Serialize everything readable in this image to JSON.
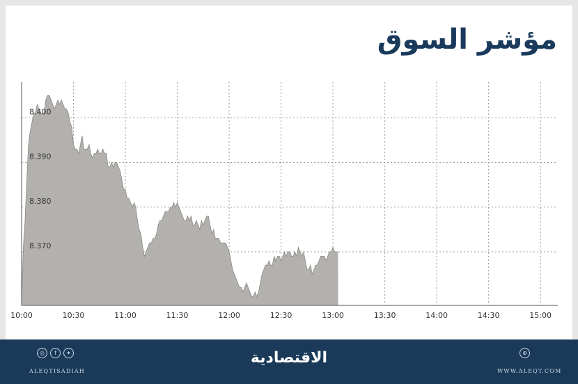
{
  "title": "مؤشر السوق",
  "chart_data": {
    "type": "area",
    "title": "مؤشر السوق",
    "xlabel": "",
    "ylabel": "",
    "y_ticks": [
      "8.370",
      "8.380",
      "8.390",
      "8.400"
    ],
    "y_tick_values": [
      8.37,
      8.38,
      8.39,
      8.4
    ],
    "x_ticks": [
      "10:00",
      "10:30",
      "11:00",
      "11:30",
      "12:00",
      "12:30",
      "13:00",
      "13:30",
      "14:00",
      "14:30",
      "15:00"
    ],
    "ylim": [
      8.358,
      8.408
    ],
    "grid": true,
    "colors": {
      "fill": "#b3b1ae",
      "line": "#8a8784",
      "grid": "#9a9a9a"
    },
    "points": [
      [
        "10:00",
        8.359
      ],
      [
        "10:01",
        8.371
      ],
      [
        "10:02",
        8.377
      ],
      [
        "10:03",
        8.386
      ],
      [
        "10:04",
        8.394
      ],
      [
        "10:05",
        8.397
      ],
      [
        "10:06",
        8.399
      ],
      [
        "10:07",
        8.401
      ],
      [
        "10:08",
        8.401
      ],
      [
        "10:09",
        8.403
      ],
      [
        "10:10",
        8.402
      ],
      [
        "10:11",
        8.401
      ],
      [
        "10:12",
        8.401
      ],
      [
        "10:13",
        8.401
      ],
      [
        "10:14",
        8.404
      ],
      [
        "10:15",
        8.405
      ],
      [
        "10:16",
        8.405
      ],
      [
        "10:17",
        8.404
      ],
      [
        "10:18",
        8.403
      ],
      [
        "10:19",
        8.402
      ],
      [
        "10:20",
        8.403
      ],
      [
        "10:21",
        8.404
      ],
      [
        "10:22",
        8.403
      ],
      [
        "10:23",
        8.404
      ],
      [
        "10:24",
        8.403
      ],
      [
        "10:25",
        8.402
      ],
      [
        "10:26",
        8.402
      ],
      [
        "10:27",
        8.401
      ],
      [
        "10:28",
        8.399
      ],
      [
        "10:29",
        8.398
      ],
      [
        "10:30",
        8.394
      ],
      [
        "10:31",
        8.393
      ],
      [
        "10:32",
        8.393
      ],
      [
        "10:33",
        8.392
      ],
      [
        "10:34",
        8.394
      ],
      [
        "10:35",
        8.396
      ],
      [
        "10:36",
        8.393
      ],
      [
        "10:37",
        8.393
      ],
      [
        "10:38",
        8.393
      ],
      [
        "10:39",
        8.394
      ],
      [
        "10:40",
        8.392
      ],
      [
        "10:41",
        8.391
      ],
      [
        "10:42",
        8.392
      ],
      [
        "10:43",
        8.392
      ],
      [
        "10:44",
        8.393
      ],
      [
        "10:45",
        8.392
      ],
      [
        "10:46",
        8.392
      ],
      [
        "10:47",
        8.393
      ],
      [
        "10:48",
        8.392
      ],
      [
        "10:49",
        8.392
      ],
      [
        "10:50",
        8.389
      ],
      [
        "10:51",
        8.389
      ],
      [
        "10:52",
        8.39
      ],
      [
        "10:53",
        8.389
      ],
      [
        "10:54",
        8.39
      ],
      [
        "10:55",
        8.39
      ],
      [
        "10:56",
        8.389
      ],
      [
        "10:57",
        8.388
      ],
      [
        "10:58",
        8.386
      ],
      [
        "10:59",
        8.384
      ],
      [
        "11:00",
        8.384
      ],
      [
        "11:01",
        8.382
      ],
      [
        "11:02",
        8.382
      ],
      [
        "11:03",
        8.381
      ],
      [
        "11:04",
        8.38
      ],
      [
        "11:05",
        8.381
      ],
      [
        "11:06",
        8.38
      ],
      [
        "11:07",
        8.377
      ],
      [
        "11:08",
        8.375
      ],
      [
        "11:09",
        8.374
      ],
      [
        "11:10",
        8.371
      ],
      [
        "11:11",
        8.369
      ],
      [
        "11:12",
        8.37
      ],
      [
        "11:13",
        8.371
      ],
      [
        "11:14",
        8.372
      ],
      [
        "11:15",
        8.372
      ],
      [
        "11:16",
        8.373
      ],
      [
        "11:17",
        8.373
      ],
      [
        "11:18",
        8.374
      ],
      [
        "11:19",
        8.376
      ],
      [
        "11:20",
        8.377
      ],
      [
        "11:21",
        8.377
      ],
      [
        "11:22",
        8.378
      ],
      [
        "11:23",
        8.379
      ],
      [
        "11:24",
        8.379
      ],
      [
        "11:25",
        8.379
      ],
      [
        "11:26",
        8.38
      ],
      [
        "11:27",
        8.38
      ],
      [
        "11:28",
        8.381
      ],
      [
        "11:29",
        8.38
      ],
      [
        "11:30",
        8.381
      ],
      [
        "11:31",
        8.38
      ],
      [
        "11:32",
        8.379
      ],
      [
        "11:33",
        8.378
      ],
      [
        "11:34",
        8.377
      ],
      [
        "11:35",
        8.377
      ],
      [
        "11:36",
        8.378
      ],
      [
        "11:37",
        8.377
      ],
      [
        "11:38",
        8.378
      ],
      [
        "11:39",
        8.376
      ],
      [
        "11:40",
        8.376
      ],
      [
        "11:41",
        8.377
      ],
      [
        "11:42",
        8.376
      ],
      [
        "11:43",
        8.375
      ],
      [
        "11:44",
        8.377
      ],
      [
        "11:45",
        8.376
      ],
      [
        "11:46",
        8.377
      ],
      [
        "11:47",
        8.378
      ],
      [
        "11:48",
        8.378
      ],
      [
        "11:49",
        8.376
      ],
      [
        "11:50",
        8.374
      ],
      [
        "11:51",
        8.375
      ],
      [
        "11:52",
        8.373
      ],
      [
        "11:53",
        8.373
      ],
      [
        "11:54",
        8.373
      ],
      [
        "11:55",
        8.372
      ],
      [
        "11:56",
        8.372
      ],
      [
        "11:57",
        8.372
      ],
      [
        "11:58",
        8.372
      ],
      [
        "11:59",
        8.371
      ],
      [
        "12:00",
        8.37
      ],
      [
        "12:01",
        8.368
      ],
      [
        "12:02",
        8.366
      ],
      [
        "12:03",
        8.365
      ],
      [
        "12:04",
        8.364
      ],
      [
        "12:05",
        8.363
      ],
      [
        "12:06",
        8.362
      ],
      [
        "12:07",
        8.362
      ],
      [
        "12:08",
        8.361
      ],
      [
        "12:09",
        8.362
      ],
      [
        "12:10",
        8.363
      ],
      [
        "12:11",
        8.362
      ],
      [
        "12:12",
        8.361
      ],
      [
        "12:13",
        8.36
      ],
      [
        "12:14",
        8.36
      ],
      [
        "12:15",
        8.361
      ],
      [
        "12:16",
        8.36
      ],
      [
        "12:17",
        8.361
      ],
      [
        "12:18",
        8.363
      ],
      [
        "12:19",
        8.365
      ],
      [
        "12:20",
        8.366
      ],
      [
        "12:21",
        8.367
      ],
      [
        "12:22",
        8.367
      ],
      [
        "12:23",
        8.368
      ],
      [
        "12:24",
        8.367
      ],
      [
        "12:25",
        8.367
      ],
      [
        "12:26",
        8.369
      ],
      [
        "12:27",
        8.368
      ],
      [
        "12:28",
        8.369
      ],
      [
        "12:29",
        8.369
      ],
      [
        "12:30",
        8.368
      ],
      [
        "12:31",
        8.369
      ],
      [
        "12:32",
        8.37
      ],
      [
        "12:33",
        8.369
      ],
      [
        "12:34",
        8.37
      ],
      [
        "12:35",
        8.37
      ],
      [
        "12:36",
        8.369
      ],
      [
        "12:37",
        8.369
      ],
      [
        "12:38",
        8.37
      ],
      [
        "12:39",
        8.369
      ],
      [
        "12:40",
        8.371
      ],
      [
        "12:41",
        8.37
      ],
      [
        "12:42",
        8.369
      ],
      [
        "12:43",
        8.37
      ],
      [
        "12:44",
        8.368
      ],
      [
        "12:45",
        8.366
      ],
      [
        "12:46",
        8.366
      ],
      [
        "12:47",
        8.367
      ],
      [
        "12:48",
        8.365
      ],
      [
        "12:49",
        8.366
      ],
      [
        "12:50",
        8.367
      ],
      [
        "12:51",
        8.367
      ],
      [
        "12:52",
        8.368
      ],
      [
        "12:53",
        8.369
      ],
      [
        "12:54",
        8.369
      ],
      [
        "12:55",
        8.369
      ],
      [
        "12:56",
        8.368
      ],
      [
        "12:57",
        8.369
      ],
      [
        "12:58",
        8.37
      ],
      [
        "12:59",
        8.37
      ],
      [
        "13:00",
        8.371
      ],
      [
        "13:01",
        8.37
      ],
      [
        "13:02",
        8.37
      ],
      [
        "13:03",
        8.37
      ]
    ]
  },
  "footer": {
    "brand": "الاقتصادية",
    "handle": "ALEQTISADIAH",
    "website": "WWW.ALEQT.COM",
    "icons": [
      "instagram-icon",
      "facebook-icon",
      "twitter-icon",
      "globe-icon"
    ]
  }
}
